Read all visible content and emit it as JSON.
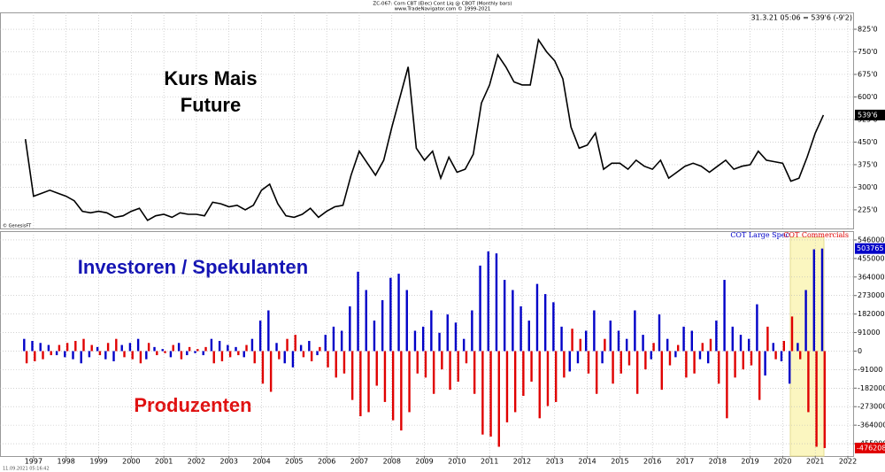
{
  "chart_data": [
    {
      "type": "line",
      "title": "ZC-067: Corn CBT (Elec) Cont Liq @ CBOT  (Monthly bars)",
      "subtitle": "www.TradeNavigator.com © 1999-2021",
      "quote": "31.3.21 05:06 = 539'6 (-9'2)",
      "source": "© GenesisFT",
      "annotations": [
        "Kurs Mais",
        "Future"
      ],
      "last_label": "539'6",
      "color": "#000000",
      "xlim": [
        1995.97,
        2022.19
      ],
      "ylim": [
        163,
        881
      ],
      "yticks": [
        {
          "value": 225,
          "label": "225'0"
        },
        {
          "value": 300,
          "label": "300'0"
        },
        {
          "value": 375,
          "label": "375'0"
        },
        {
          "value": 450,
          "label": "450'0"
        },
        {
          "value": 525,
          "label": "525'0"
        },
        {
          "value": 600,
          "label": "600'0"
        },
        {
          "value": 675,
          "label": "675'0"
        },
        {
          "value": 750,
          "label": "750'0"
        },
        {
          "value": 825,
          "label": "825'0"
        }
      ],
      "grid": true,
      "x": [
        1996.75,
        1997,
        1997.25,
        1997.5,
        1997.75,
        1998,
        1998.25,
        1998.5,
        1998.75,
        1999,
        1999.25,
        1999.5,
        1999.75,
        2000,
        2000.25,
        2000.5,
        2000.75,
        2001,
        2001.25,
        2001.5,
        2001.75,
        2002,
        2002.25,
        2002.5,
        2002.75,
        2003,
        2003.25,
        2003.5,
        2003.75,
        2004,
        2004.25,
        2004.5,
        2004.75,
        2005,
        2005.25,
        2005.5,
        2005.75,
        2006,
        2006.25,
        2006.5,
        2006.75,
        2007,
        2007.25,
        2007.5,
        2007.75,
        2008,
        2008.25,
        2008.5,
        2008.75,
        2009,
        2009.25,
        2009.5,
        2009.75,
        2010,
        2010.25,
        2010.5,
        2010.75,
        2011,
        2011.25,
        2011.5,
        2011.75,
        2012,
        2012.25,
        2012.5,
        2012.75,
        2013,
        2013.25,
        2013.5,
        2013.75,
        2014,
        2014.25,
        2014.5,
        2014.75,
        2015,
        2015.25,
        2015.5,
        2015.75,
        2016,
        2016.25,
        2016.5,
        2016.75,
        2017,
        2017.25,
        2017.5,
        2017.75,
        2018,
        2018.25,
        2018.5,
        2018.75,
        2019,
        2019.25,
        2019.5,
        2019.75,
        2020,
        2020.25,
        2020.5,
        2020.75,
        2021,
        2021.25
      ],
      "values": [
        460,
        270,
        280,
        290,
        280,
        270,
        255,
        220,
        215,
        220,
        215,
        200,
        205,
        220,
        230,
        190,
        205,
        210,
        200,
        215,
        210,
        210,
        205,
        250,
        245,
        235,
        240,
        225,
        240,
        290,
        310,
        245,
        205,
        200,
        210,
        230,
        200,
        220,
        235,
        240,
        340,
        420,
        380,
        340,
        390,
        500,
        600,
        700,
        430,
        390,
        420,
        330,
        400,
        350,
        360,
        410,
        580,
        640,
        740,
        700,
        650,
        640,
        640,
        790,
        750,
        720,
        660,
        500,
        430,
        440,
        480,
        360,
        380,
        380,
        360,
        390,
        370,
        360,
        390,
        330,
        350,
        370,
        380,
        370,
        350,
        370,
        390,
        360,
        370,
        375,
        420,
        390,
        385,
        380,
        320,
        330,
        400,
        480,
        540
      ]
    },
    {
      "type": "bar",
      "annotations": [
        "Investoren / Spekulanten",
        "Produzenten"
      ],
      "footer": "11.09.2021 05:16:42",
      "xlim": [
        1995.97,
        2022.19
      ],
      "xticks": [
        1997,
        1998,
        1999,
        2000,
        2001,
        2002,
        2003,
        2004,
        2005,
        2006,
        2007,
        2008,
        2009,
        2010,
        2011,
        2012,
        2013,
        2014,
        2015,
        2016,
        2017,
        2018,
        2019,
        2020,
        2021,
        2022
      ],
      "ylim": [
        -515700,
        572000
      ],
      "yticks": [
        546000,
        455000,
        364000,
        273000,
        182000,
        91000,
        0,
        -91000,
        -182000,
        -273000,
        -364000,
        -455000
      ],
      "grid": true,
      "x": [
        1996.75,
        1997,
        1997.25,
        1997.5,
        1997.75,
        1998,
        1998.25,
        1998.5,
        1998.75,
        1999,
        1999.25,
        1999.5,
        1999.75,
        2000,
        2000.25,
        2000.5,
        2000.75,
        2001,
        2001.25,
        2001.5,
        2001.75,
        2002,
        2002.25,
        2002.5,
        2002.75,
        2003,
        2003.25,
        2003.5,
        2003.75,
        2004,
        2004.25,
        2004.5,
        2004.75,
        2005,
        2005.25,
        2005.5,
        2005.75,
        2006,
        2006.25,
        2006.5,
        2006.75,
        2007,
        2007.25,
        2007.5,
        2007.75,
        2008,
        2008.25,
        2008.5,
        2008.75,
        2009,
        2009.25,
        2009.5,
        2009.75,
        2010,
        2010.25,
        2010.5,
        2010.75,
        2011,
        2011.25,
        2011.5,
        2011.75,
        2012,
        2012.25,
        2012.5,
        2012.75,
        2013,
        2013.25,
        2013.5,
        2013.75,
        2014,
        2014.25,
        2014.5,
        2014.75,
        2015,
        2015.25,
        2015.5,
        2015.75,
        2016,
        2016.25,
        2016.5,
        2016.75,
        2017,
        2017.25,
        2017.5,
        2017.75,
        2018,
        2018.25,
        2018.5,
        2018.75,
        2019,
        2019.25,
        2019.5,
        2019.75,
        2020,
        2020.25,
        2020.5,
        2020.75,
        2021,
        2021.25
      ],
      "series": [
        {
          "name": "COT Large Spec",
          "color": "#0000c8",
          "values": [
            60000,
            50000,
            40000,
            30000,
            -20000,
            -30000,
            -40000,
            -60000,
            -30000,
            20000,
            -40000,
            -50000,
            30000,
            40000,
            60000,
            -40000,
            20000,
            10000,
            -30000,
            40000,
            -20000,
            -10000,
            -20000,
            60000,
            50000,
            30000,
            20000,
            -30000,
            60000,
            150000,
            200000,
            40000,
            -60000,
            -80000,
            30000,
            50000,
            -20000,
            80000,
            120000,
            100000,
            220000,
            390000,
            300000,
            150000,
            250000,
            360000,
            380000,
            300000,
            100000,
            120000,
            200000,
            90000,
            180000,
            140000,
            60000,
            200000,
            420000,
            490000,
            480000,
            350000,
            300000,
            220000,
            150000,
            330000,
            280000,
            240000,
            120000,
            -100000,
            -60000,
            100000,
            200000,
            -60000,
            150000,
            100000,
            60000,
            200000,
            80000,
            -40000,
            180000,
            60000,
            -30000,
            120000,
            100000,
            -40000,
            -60000,
            150000,
            350000,
            120000,
            80000,
            60000,
            230000,
            -120000,
            40000,
            -50000,
            -160000,
            40000,
            300000,
            500000,
            503765
          ]
        },
        {
          "name": "COT Commercials",
          "color": "#e00000",
          "values": [
            -60000,
            -50000,
            -40000,
            -20000,
            30000,
            40000,
            50000,
            60000,
            30000,
            -20000,
            40000,
            60000,
            -30000,
            -40000,
            -60000,
            40000,
            -20000,
            -10000,
            30000,
            -40000,
            20000,
            10000,
            20000,
            -60000,
            -50000,
            -30000,
            -20000,
            30000,
            -60000,
            -160000,
            -200000,
            -40000,
            60000,
            80000,
            -30000,
            -50000,
            20000,
            -80000,
            -130000,
            -110000,
            -240000,
            -320000,
            -300000,
            -170000,
            -250000,
            -340000,
            -390000,
            -300000,
            -110000,
            -130000,
            -210000,
            -90000,
            -190000,
            -150000,
            -60000,
            -210000,
            -410000,
            -420000,
            -470000,
            -350000,
            -300000,
            -220000,
            -150000,
            -330000,
            -270000,
            -250000,
            -130000,
            110000,
            60000,
            -110000,
            -210000,
            60000,
            -160000,
            -110000,
            -70000,
            -210000,
            -90000,
            40000,
            -190000,
            -70000,
            30000,
            -130000,
            -110000,
            40000,
            60000,
            -160000,
            -330000,
            -130000,
            -90000,
            -70000,
            -240000,
            120000,
            -40000,
            50000,
            170000,
            -40000,
            -300000,
            -470000,
            -476208
          ]
        }
      ]
    }
  ]
}
